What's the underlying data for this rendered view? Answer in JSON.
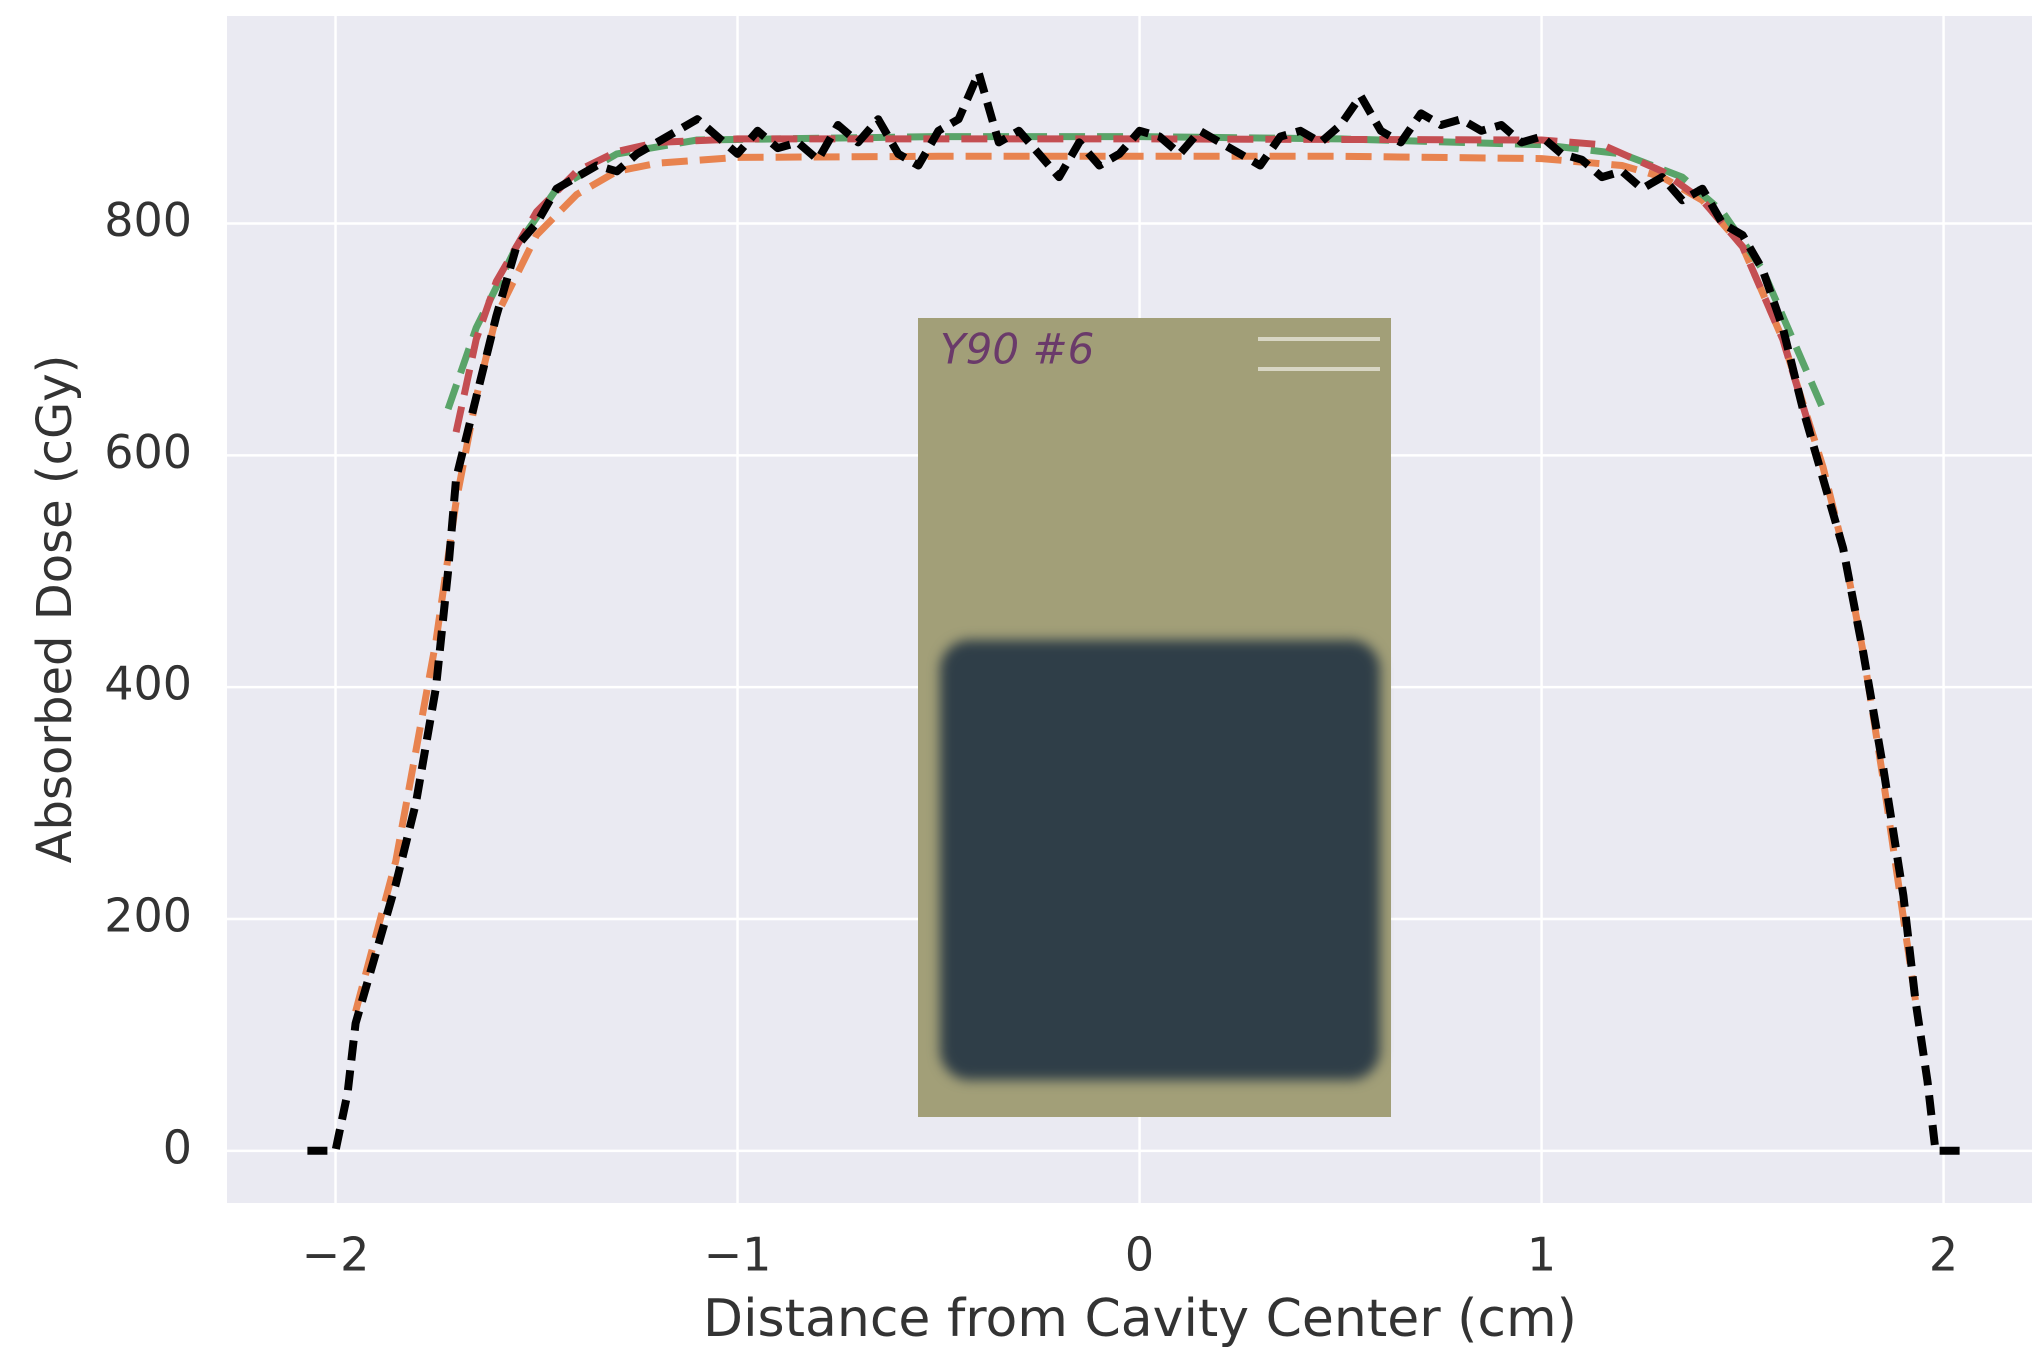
{
  "chart_data": {
    "type": "line",
    "x_label": "Distance from Cavity Center (cm)",
    "y_label": "Absorbed Dose (cGy)",
    "inset_label": "Y90 #6",
    "xlim": [
      -2.27,
      2.22
    ],
    "ylim": [
      -45,
      979
    ],
    "xticks": [
      {
        "value": -2,
        "label": "−2"
      },
      {
        "value": -1,
        "label": "−1"
      },
      0,
      1,
      2
    ],
    "yticks": [
      0,
      200,
      400,
      600,
      800
    ],
    "grid": true,
    "series": [
      {
        "color": "#000000",
        "x": [
          -2.07,
          -2.0,
          -1.97,
          -1.95,
          -1.9,
          -1.85,
          -1.8,
          -1.75,
          -1.72,
          -1.7,
          -1.65,
          -1.6,
          -1.55,
          -1.5,
          -1.45,
          -1.4,
          -1.35,
          -1.3,
          -1.25,
          -1.2,
          -1.15,
          -1.1,
          -1.05,
          -1.0,
          -0.95,
          -0.9,
          -0.85,
          -0.8,
          -0.75,
          -0.7,
          -0.65,
          -0.6,
          -0.55,
          -0.5,
          -0.45,
          -0.4,
          -0.35,
          -0.3,
          -0.25,
          -0.2,
          -0.15,
          -0.1,
          -0.05,
          0,
          0.05,
          0.1,
          0.15,
          0.2,
          0.25,
          0.3,
          0.35,
          0.4,
          0.45,
          0.5,
          0.55,
          0.6,
          0.65,
          0.7,
          0.75,
          0.8,
          0.85,
          0.9,
          0.95,
          1.0,
          1.05,
          1.1,
          1.15,
          1.2,
          1.25,
          1.3,
          1.35,
          1.4,
          1.45,
          1.5,
          1.55,
          1.6,
          1.65,
          1.7,
          1.75,
          1.8,
          1.85,
          1.9,
          1.93,
          1.96,
          1.98,
          2.05
        ],
        "values": [
          0,
          0,
          50,
          110,
          170,
          230,
          300,
          400,
          500,
          580,
          650,
          720,
          780,
          800,
          830,
          840,
          850,
          845,
          860,
          870,
          880,
          890,
          875,
          860,
          880,
          865,
          870,
          855,
          885,
          870,
          890,
          860,
          850,
          880,
          890,
          930,
          870,
          880,
          860,
          840,
          870,
          850,
          860,
          880,
          875,
          860,
          880,
          870,
          860,
          850,
          875,
          880,
          870,
          885,
          910,
          880,
          870,
          895,
          885,
          890,
          880,
          885,
          870,
          875,
          860,
          855,
          840,
          845,
          830,
          840,
          820,
          830,
          800,
          790,
          760,
          710,
          640,
          580,
          520,
          430,
          330,
          220,
          130,
          60,
          0,
          0
        ]
      },
      {
        "color": "#e8834f",
        "x": [
          -1.95,
          -1.85,
          -1.75,
          -1.7,
          -1.65,
          -1.6,
          -1.5,
          -1.4,
          -1.3,
          -1.2,
          -1.0,
          -0.5,
          0,
          0.5,
          1.0,
          1.2,
          1.3,
          1.4,
          1.5,
          1.6,
          1.7,
          1.75,
          1.8,
          1.85,
          1.93
        ],
        "values": [
          120,
          250,
          440,
          560,
          650,
          720,
          790,
          825,
          845,
          852,
          857,
          858,
          858,
          858,
          856,
          850,
          840,
          820,
          780,
          700,
          590,
          520,
          430,
          320,
          130
        ]
      },
      {
        "color": "#5aa469",
        "x": [
          -1.72,
          -1.65,
          -1.55,
          -1.45,
          -1.3,
          -1.1,
          -0.5,
          0,
          0.5,
          1.0,
          1.2,
          1.35,
          1.45,
          1.55,
          1.65,
          1.7
        ],
        "values": [
          640,
          710,
          780,
          830,
          860,
          872,
          875,
          875,
          873,
          868,
          860,
          840,
          810,
          760,
          680,
          640
        ]
      },
      {
        "color": "#c44e52",
        "x": [
          -1.7,
          -1.65,
          -1.6,
          -1.5,
          -1.4,
          -1.3,
          -1.2,
          -1.0,
          0,
          1.0,
          1.15,
          1.3,
          1.4,
          1.5,
          1.6,
          1.67
        ],
        "values": [
          620,
          700,
          750,
          810,
          845,
          862,
          870,
          873,
          873,
          872,
          868,
          845,
          820,
          780,
          700,
          620
        ]
      }
    ]
  }
}
